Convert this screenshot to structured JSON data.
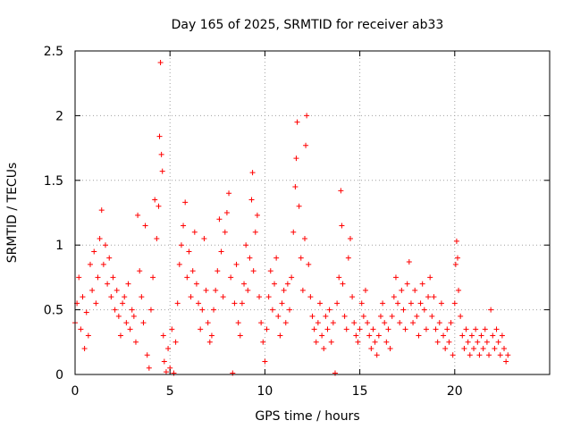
{
  "chart_data": {
    "type": "scatter",
    "title": "Day 165 of 2025, SRMTID for receiver ab33",
    "xlabel": "GPS time / hours",
    "ylabel": "SRMTID / TECUs",
    "xlim": [
      0,
      25
    ],
    "ylim": [
      0,
      2.5
    ],
    "xticks": [
      "0",
      "5",
      "10",
      "15",
      "20"
    ],
    "yticks": [
      "0",
      "0.5",
      "1",
      "1.5",
      "2",
      "2.5"
    ],
    "grid": true,
    "marker": "+",
    "color": "#ff0000",
    "series": [
      {
        "name": "SRMTID",
        "points": [
          [
            0.0,
            0.4
          ],
          [
            0.1,
            0.55
          ],
          [
            0.2,
            0.75
          ],
          [
            0.3,
            0.35
          ],
          [
            0.4,
            0.6
          ],
          [
            0.5,
            0.2
          ],
          [
            0.6,
            0.48
          ],
          [
            0.7,
            0.3
          ],
          [
            0.8,
            0.85
          ],
          [
            0.9,
            0.65
          ],
          [
            1.0,
            0.95
          ],
          [
            1.1,
            0.55
          ],
          [
            1.2,
            0.75
          ],
          [
            1.3,
            1.05
          ],
          [
            1.4,
            1.27
          ],
          [
            1.5,
            0.85
          ],
          [
            1.6,
            1.0
          ],
          [
            1.7,
            0.7
          ],
          [
            1.8,
            0.9
          ],
          [
            1.9,
            0.6
          ],
          [
            2.0,
            0.75
          ],
          [
            2.1,
            0.5
          ],
          [
            2.2,
            0.65
          ],
          [
            2.3,
            0.45
          ],
          [
            2.4,
            0.3
          ],
          [
            2.5,
            0.55
          ],
          [
            2.6,
            0.6
          ],
          [
            2.7,
            0.4
          ],
          [
            2.8,
            0.7
          ],
          [
            2.9,
            0.35
          ],
          [
            3.0,
            0.5
          ],
          [
            3.1,
            0.45
          ],
          [
            3.2,
            0.25
          ],
          [
            3.3,
            1.23
          ],
          [
            3.4,
            0.8
          ],
          [
            3.5,
            0.6
          ],
          [
            3.6,
            0.4
          ],
          [
            3.7,
            1.15
          ],
          [
            3.8,
            0.15
          ],
          [
            3.9,
            0.05
          ],
          [
            4.0,
            0.5
          ],
          [
            4.1,
            0.75
          ],
          [
            4.2,
            1.35
          ],
          [
            4.3,
            1.05
          ],
          [
            4.4,
            1.3
          ],
          [
            4.45,
            1.84
          ],
          [
            4.5,
            2.41
          ],
          [
            4.55,
            1.7
          ],
          [
            4.6,
            1.57
          ],
          [
            4.65,
            0.3
          ],
          [
            4.7,
            0.1
          ],
          [
            4.8,
            0.02
          ],
          [
            4.9,
            0.2
          ],
          [
            5.0,
            0.05
          ],
          [
            5.1,
            0.35
          ],
          [
            5.2,
            0.01
          ],
          [
            5.3,
            0.25
          ],
          [
            5.4,
            0.55
          ],
          [
            5.5,
            0.85
          ],
          [
            5.6,
            1.0
          ],
          [
            5.7,
            1.15
          ],
          [
            5.8,
            1.33
          ],
          [
            5.9,
            0.75
          ],
          [
            6.0,
            0.95
          ],
          [
            6.1,
            0.6
          ],
          [
            6.2,
            0.8
          ],
          [
            6.3,
            1.1
          ],
          [
            6.4,
            0.7
          ],
          [
            6.5,
            0.55
          ],
          [
            6.6,
            0.35
          ],
          [
            6.7,
            0.5
          ],
          [
            6.8,
            1.05
          ],
          [
            6.9,
            0.65
          ],
          [
            7.0,
            0.4
          ],
          [
            7.1,
            0.25
          ],
          [
            7.2,
            0.3
          ],
          [
            7.3,
            0.5
          ],
          [
            7.4,
            0.65
          ],
          [
            7.5,
            0.8
          ],
          [
            7.6,
            1.2
          ],
          [
            7.7,
            0.95
          ],
          [
            7.8,
            0.6
          ],
          [
            7.9,
            1.1
          ],
          [
            8.0,
            1.25
          ],
          [
            8.1,
            1.4
          ],
          [
            8.2,
            0.75
          ],
          [
            8.3,
            0.01
          ],
          [
            8.4,
            0.55
          ],
          [
            8.5,
            0.85
          ],
          [
            8.6,
            0.4
          ],
          [
            8.7,
            0.3
          ],
          [
            8.8,
            0.55
          ],
          [
            8.9,
            0.7
          ],
          [
            9.0,
            1.0
          ],
          [
            9.1,
            0.65
          ],
          [
            9.2,
            0.9
          ],
          [
            9.3,
            1.35
          ],
          [
            9.35,
            1.56
          ],
          [
            9.4,
            0.8
          ],
          [
            9.5,
            1.1
          ],
          [
            9.6,
            1.23
          ],
          [
            9.7,
            0.6
          ],
          [
            9.8,
            0.4
          ],
          [
            9.9,
            0.25
          ],
          [
            10.0,
            0.1
          ],
          [
            10.1,
            0.35
          ],
          [
            10.2,
            0.6
          ],
          [
            10.3,
            0.8
          ],
          [
            10.4,
            0.5
          ],
          [
            10.5,
            0.7
          ],
          [
            10.6,
            0.9
          ],
          [
            10.7,
            0.45
          ],
          [
            10.8,
            0.3
          ],
          [
            10.9,
            0.55
          ],
          [
            11.0,
            0.65
          ],
          [
            11.1,
            0.4
          ],
          [
            11.2,
            0.7
          ],
          [
            11.3,
            0.5
          ],
          [
            11.4,
            0.75
          ],
          [
            11.5,
            1.1
          ],
          [
            11.6,
            1.45
          ],
          [
            11.65,
            1.67
          ],
          [
            11.7,
            1.95
          ],
          [
            11.8,
            1.3
          ],
          [
            11.9,
            0.9
          ],
          [
            12.0,
            0.65
          ],
          [
            12.1,
            1.05
          ],
          [
            12.15,
            1.77
          ],
          [
            12.2,
            2.0
          ],
          [
            12.3,
            0.85
          ],
          [
            12.4,
            0.6
          ],
          [
            12.5,
            0.45
          ],
          [
            12.6,
            0.35
          ],
          [
            12.7,
            0.25
          ],
          [
            12.8,
            0.4
          ],
          [
            12.9,
            0.55
          ],
          [
            13.0,
            0.3
          ],
          [
            13.1,
            0.2
          ],
          [
            13.2,
            0.45
          ],
          [
            13.3,
            0.35
          ],
          [
            13.4,
            0.5
          ],
          [
            13.5,
            0.25
          ],
          [
            13.6,
            0.4
          ],
          [
            13.7,
            0.01
          ],
          [
            13.8,
            0.55
          ],
          [
            13.9,
            0.75
          ],
          [
            14.0,
            1.42
          ],
          [
            14.05,
            1.15
          ],
          [
            14.1,
            0.7
          ],
          [
            14.2,
            0.45
          ],
          [
            14.3,
            0.35
          ],
          [
            14.4,
            0.9
          ],
          [
            14.5,
            1.05
          ],
          [
            14.6,
            0.6
          ],
          [
            14.7,
            0.4
          ],
          [
            14.8,
            0.3
          ],
          [
            14.9,
            0.25
          ],
          [
            15.0,
            0.35
          ],
          [
            15.1,
            0.55
          ],
          [
            15.2,
            0.45
          ],
          [
            15.3,
            0.65
          ],
          [
            15.4,
            0.4
          ],
          [
            15.5,
            0.3
          ],
          [
            15.6,
            0.2
          ],
          [
            15.7,
            0.35
          ],
          [
            15.8,
            0.25
          ],
          [
            15.9,
            0.15
          ],
          [
            16.0,
            0.3
          ],
          [
            16.1,
            0.45
          ],
          [
            16.2,
            0.55
          ],
          [
            16.3,
            0.4
          ],
          [
            16.4,
            0.25
          ],
          [
            16.5,
            0.35
          ],
          [
            16.6,
            0.2
          ],
          [
            16.7,
            0.45
          ],
          [
            16.8,
            0.6
          ],
          [
            16.9,
            0.75
          ],
          [
            17.0,
            0.55
          ],
          [
            17.1,
            0.4
          ],
          [
            17.2,
            0.65
          ],
          [
            17.3,
            0.5
          ],
          [
            17.4,
            0.35
          ],
          [
            17.5,
            0.7
          ],
          [
            17.6,
            0.87
          ],
          [
            17.7,
            0.55
          ],
          [
            17.8,
            0.4
          ],
          [
            17.9,
            0.65
          ],
          [
            18.0,
            0.45
          ],
          [
            18.1,
            0.3
          ],
          [
            18.2,
            0.55
          ],
          [
            18.3,
            0.7
          ],
          [
            18.4,
            0.5
          ],
          [
            18.5,
            0.35
          ],
          [
            18.6,
            0.6
          ],
          [
            18.7,
            0.75
          ],
          [
            18.8,
            0.45
          ],
          [
            18.9,
            0.6
          ],
          [
            19.0,
            0.35
          ],
          [
            19.1,
            0.25
          ],
          [
            19.2,
            0.4
          ],
          [
            19.3,
            0.55
          ],
          [
            19.4,
            0.3
          ],
          [
            19.5,
            0.2
          ],
          [
            19.6,
            0.35
          ],
          [
            19.7,
            0.25
          ],
          [
            19.8,
            0.4
          ],
          [
            19.9,
            0.15
          ],
          [
            20.0,
            0.55
          ],
          [
            20.05,
            0.85
          ],
          [
            20.1,
            1.03
          ],
          [
            20.15,
            0.9
          ],
          [
            20.2,
            0.65
          ],
          [
            20.3,
            0.45
          ],
          [
            20.4,
            0.3
          ],
          [
            20.5,
            0.2
          ],
          [
            20.6,
            0.35
          ],
          [
            20.7,
            0.25
          ],
          [
            20.8,
            0.15
          ],
          [
            20.9,
            0.3
          ],
          [
            21.0,
            0.2
          ],
          [
            21.1,
            0.35
          ],
          [
            21.2,
            0.25
          ],
          [
            21.3,
            0.15
          ],
          [
            21.4,
            0.3
          ],
          [
            21.5,
            0.2
          ],
          [
            21.6,
            0.35
          ],
          [
            21.7,
            0.25
          ],
          [
            21.8,
            0.15
          ],
          [
            21.9,
            0.5
          ],
          [
            22.0,
            0.3
          ],
          [
            22.1,
            0.2
          ],
          [
            22.2,
            0.35
          ],
          [
            22.3,
            0.25
          ],
          [
            22.4,
            0.15
          ],
          [
            22.5,
            0.3
          ],
          [
            22.6,
            0.2
          ],
          [
            22.7,
            0.1
          ],
          [
            22.8,
            0.15
          ]
        ]
      }
    ]
  }
}
